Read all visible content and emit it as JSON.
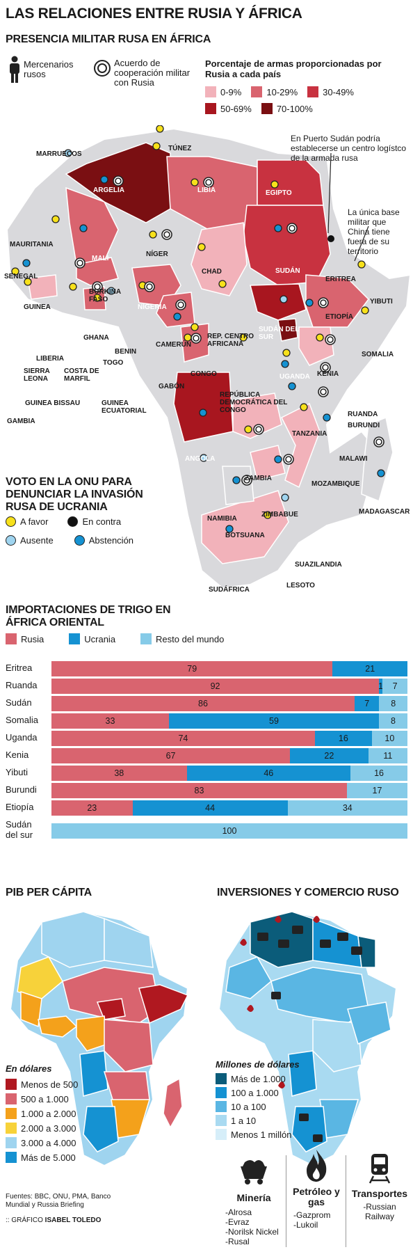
{
  "header": {
    "title": "LAS RELACIONES ENTRE RUSIA Y ÁFRICA",
    "subtitle": "PRESENCIA MILITAR RUSA EN ÁFRICA"
  },
  "military_legend": {
    "mercenaries": "Mercenarios rusos",
    "agreement": "Acuerdo de cooperación militar con Rusia",
    "weapons_title": "Porcentaje de armas proporcionadas por Rusia a cada país",
    "ranges": [
      {
        "label": "0-9%",
        "color": "#f2b2ba"
      },
      {
        "label": "10-29%",
        "color": "#d9646f"
      },
      {
        "label": "30-49%",
        "color": "#c83240"
      },
      {
        "label": "50-69%",
        "color": "#a8161f"
      },
      {
        "label": "70-100%",
        "color": "#7a0f12"
      }
    ]
  },
  "annotations": {
    "port_sudan": "En Puerto Sudán podría establecerse un centro logístco de la armada rusa",
    "djibouti_base": "La única base militar que China tiene fuera de su territorio"
  },
  "countries": [
    "MARRUECOS",
    "TÚNEZ",
    "ARGELIA",
    "LIBIA",
    "EGIPTO",
    "MAURITANIA",
    "MALI",
    "NÍGER",
    "CHAD",
    "SUDÁN",
    "ERITREA",
    "SENEGAL",
    "BURKINA FASO",
    "NIGERIA",
    "YIBUTI",
    "ETIOPÍA",
    "GUINEA",
    "GHANA",
    "BENIN",
    "TOGO",
    "REP. CENTRO AFRICANA",
    "SUDÁN DEL SUR",
    "SOMALIA",
    "SIERRA LEONA",
    "LIBERIA",
    "COSTA DE MARFIL",
    "CAMERÚN",
    "CONGO",
    "GABÓN",
    "UGANDA",
    "KENIA",
    "GUINEA BISSAU",
    "GUINEA ECUATORIAL",
    "REPÚBLICA DEMOCRÁTICA DEL CONGO",
    "RUANDA",
    "BURUNDI",
    "GAMBIA",
    "TANZANIA",
    "ANGOLA",
    "MALAWI",
    "ZAMBIA",
    "MOZAMBIQUE",
    "MADAGASCAR",
    "NAMIBIA",
    "ZIMBABUE",
    "BOTSUANA",
    "SUAZILANDIA",
    "SUDÁFRICA",
    "LESOTO"
  ],
  "vote": {
    "title": "VOTO EN LA ONU PARA DENUNCIAR LA INVASIÓN RUSA DE UCRANIA",
    "favor": "A favor",
    "against": "En contra",
    "absent": "Ausente",
    "abstention": "Abstención"
  },
  "wheat": {
    "title": "IMPORTACIONES  DE TRIGO EN ÁFRICA ORIENTAL",
    "legend": {
      "russia": "Rusia",
      "ukraine": "Ucrania",
      "rest": "Resto del mundo"
    }
  },
  "chart_data": {
    "type": "bar",
    "stacked": true,
    "title": "IMPORTACIONES  DE TRIGO EN ÁFRICA ORIENTAL",
    "categories": [
      "Eritrea",
      "Ruanda",
      "Sudán",
      "Somalia",
      "Uganda",
      "Kenia",
      "Yibuti",
      "Burundi",
      "Etiopía",
      "Sudán del sur"
    ],
    "series": [
      {
        "name": "Rusia",
        "values": [
          79,
          92,
          86,
          33,
          74,
          67,
          38,
          83,
          23,
          0
        ],
        "color": "#d9646f"
      },
      {
        "name": "Ucrania",
        "values": [
          21,
          1,
          7,
          59,
          16,
          22,
          46,
          0,
          44,
          0
        ],
        "color": "#1592d2"
      },
      {
        "name": "Resto del mundo",
        "values": [
          0,
          7,
          8,
          8,
          10,
          11,
          16,
          17,
          34,
          100
        ],
        "color": "#86cbe8"
      }
    ],
    "xlim": [
      0,
      100
    ],
    "legend": "top"
  },
  "gdp": {
    "title": "PIB PER CÁPITA",
    "units": "En dólares",
    "items": [
      {
        "label": "Menos de 500",
        "color": "#b01820"
      },
      {
        "label": "500 a 1.000",
        "color": "#d9646f"
      },
      {
        "label": "1.000 a 2.000",
        "color": "#f4a11b"
      },
      {
        "label": "2.000 a 3.000",
        "color": "#f7d23a"
      },
      {
        "label": "3.000 a 4.000",
        "color": "#9fd4ef"
      },
      {
        "label": "Más de 5.000",
        "color": "#1592d2"
      }
    ]
  },
  "investment": {
    "title": "INVERSIONES Y COMERCIO RUSO",
    "units": "Millones de dólares",
    "items": [
      {
        "label": "Más de 1.000",
        "color": "#0b5c7a"
      },
      {
        "label": "100 a 1.000",
        "color": "#1592d2"
      },
      {
        "label": "10 a 100",
        "color": "#5ab6e3"
      },
      {
        "label": "1 a 10",
        "color": "#a9daf1"
      },
      {
        "label": "Menos 1 millón",
        "color": "#d6eef9"
      }
    ],
    "sectors": [
      {
        "title": "Minería",
        "companies": [
          "-Alrosa",
          "-Evraz",
          "-Norilsk Nickel",
          "-Rusal"
        ]
      },
      {
        "title": "Petróleo y gas",
        "companies": [
          "-Gazprom",
          "-Lukoil"
        ]
      },
      {
        "title": "Transportes",
        "companies": [
          "-Russian Railway"
        ]
      }
    ]
  },
  "footer": {
    "sources": "Fuentes: BBC, ONU, PMA, Banco Mundial y Russia Briefing",
    "credit_prefix": ":: GRÁFICO ",
    "credit_name": "ISABEL TOLEDO"
  }
}
